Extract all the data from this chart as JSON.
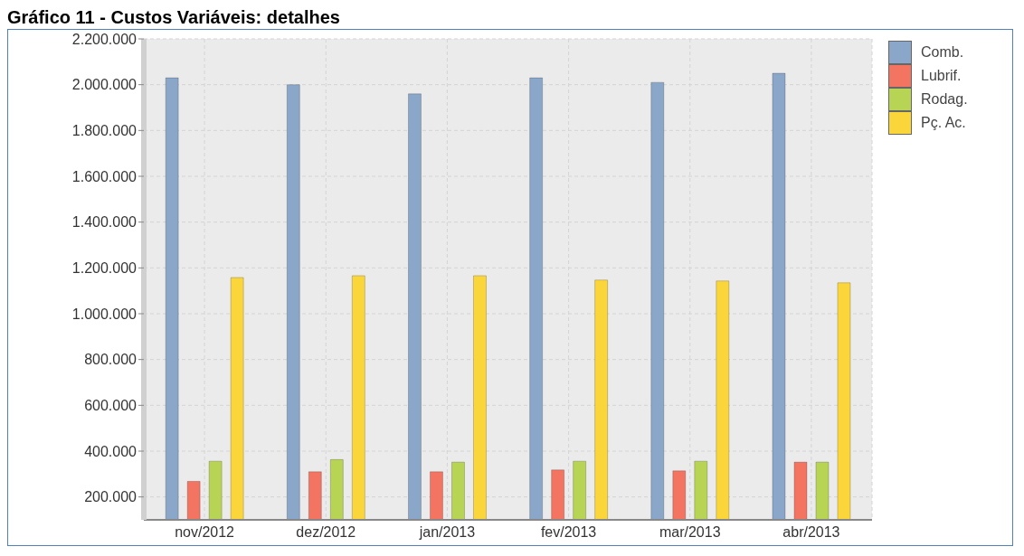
{
  "chart_data": {
    "type": "bar",
    "title": "Gráfico 11 - Custos Variáveis: detalhes",
    "categories": [
      "nov/2012",
      "dez/2012",
      "jan/2013",
      "fev/2013",
      "mar/2013",
      "abr/2013"
    ],
    "series": [
      {
        "name": "Comb.",
        "color": "#8aa6c8",
        "values": [
          2030000,
          2000000,
          1960000,
          2030000,
          2010000,
          2050000
        ]
      },
      {
        "name": "Lubrif.",
        "color": "#f47462",
        "values": [
          268000,
          310000,
          310000,
          318000,
          314000,
          352000
        ]
      },
      {
        "name": "Rodag.",
        "color": "#b8d454",
        "values": [
          356000,
          363000,
          352000,
          356000,
          356000,
          352000
        ]
      },
      {
        "name": "Pç. Ac.",
        "color": "#fbd63a",
        "values": [
          1158000,
          1166000,
          1166000,
          1147000,
          1143000,
          1135000
        ]
      }
    ],
    "ylim": [
      100000,
      2200000
    ],
    "yticks": [
      {
        "value": 200000,
        "label": "200.000"
      },
      {
        "value": 400000,
        "label": "400.000"
      },
      {
        "value": 600000,
        "label": "600.000"
      },
      {
        "value": 800000,
        "label": "800.000"
      },
      {
        "value": 1000000,
        "label": "1.000.000"
      },
      {
        "value": 1200000,
        "label": "1.200.000"
      },
      {
        "value": 1400000,
        "label": "1.400.000"
      },
      {
        "value": 1600000,
        "label": "1.600.000"
      },
      {
        "value": 1800000,
        "label": "1.800.000"
      },
      {
        "value": 2000000,
        "label": "2.000.000"
      },
      {
        "value": 2200000,
        "label": "2.200.000"
      }
    ],
    "grid": true,
    "legend": "top right"
  }
}
